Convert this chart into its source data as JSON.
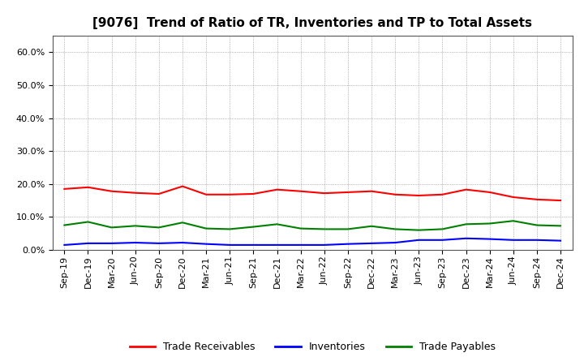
{
  "title": "[9076]  Trend of Ratio of TR, Inventories and TP to Total Assets",
  "x_labels": [
    "Sep-19",
    "Dec-19",
    "Mar-20",
    "Jun-20",
    "Sep-20",
    "Dec-20",
    "Mar-21",
    "Jun-21",
    "Sep-21",
    "Dec-21",
    "Mar-22",
    "Jun-22",
    "Sep-22",
    "Dec-22",
    "Mar-23",
    "Jun-23",
    "Sep-23",
    "Dec-23",
    "Mar-24",
    "Jun-24",
    "Sep-24",
    "Dec-24"
  ],
  "trade_receivables": [
    0.185,
    0.19,
    0.178,
    0.173,
    0.17,
    0.193,
    0.168,
    0.168,
    0.17,
    0.183,
    0.178,
    0.172,
    0.175,
    0.178,
    0.168,
    0.165,
    0.168,
    0.183,
    0.175,
    0.16,
    0.153,
    0.15
  ],
  "inventories": [
    0.015,
    0.02,
    0.02,
    0.022,
    0.02,
    0.022,
    0.018,
    0.015,
    0.015,
    0.015,
    0.015,
    0.015,
    0.018,
    0.02,
    0.022,
    0.03,
    0.03,
    0.035,
    0.033,
    0.03,
    0.03,
    0.028
  ],
  "trade_payables": [
    0.075,
    0.085,
    0.068,
    0.073,
    0.068,
    0.083,
    0.065,
    0.063,
    0.07,
    0.078,
    0.065,
    0.063,
    0.063,
    0.072,
    0.063,
    0.06,
    0.063,
    0.078,
    0.08,
    0.088,
    0.075,
    0.073
  ],
  "ylim": [
    0.0,
    0.65
  ],
  "yticks": [
    0.0,
    0.1,
    0.2,
    0.3,
    0.4,
    0.5,
    0.6
  ],
  "line_color_tr": "#FF0000",
  "line_color_inv": "#0000FF",
  "line_color_tp": "#008000",
  "legend_labels": [
    "Trade Receivables",
    "Inventories",
    "Trade Payables"
  ],
  "background_color": "#FFFFFF",
  "plot_background": "#FFFFFF",
  "title_fontsize": 11,
  "tick_fontsize": 8,
  "legend_fontsize": 9
}
